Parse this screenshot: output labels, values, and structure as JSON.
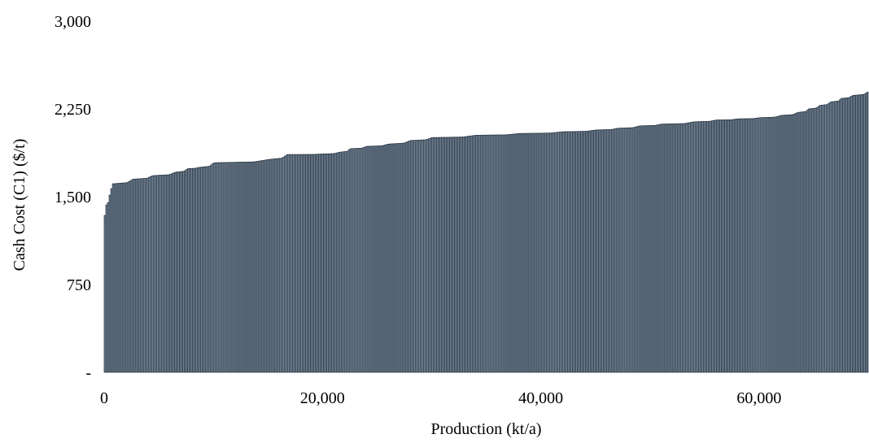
{
  "colors": {
    "bar_fill": "#7b8a9a",
    "bar_edge": "#1f2c3c",
    "text": "#000000",
    "background": "#ffffff"
  },
  "chart_data": {
    "type": "bar",
    "subtype": "cost-curve",
    "title": "",
    "xlabel": "Production (kt/a)",
    "ylabel": "Cash Cost (C1) ($/t)",
    "xlim": [
      0,
      70000
    ],
    "ylim": [
      0,
      3000
    ],
    "x_ticks": [
      0,
      20000,
      40000,
      60000
    ],
    "x_tick_labels": [
      "0",
      "20,000",
      "40,000",
      "60,000"
    ],
    "y_ticks": [
      0,
      750,
      1500,
      2250,
      3000
    ],
    "y_tick_labels": [
      "-",
      "750",
      "1,500",
      "2,250",
      "3,000"
    ],
    "grid": false,
    "legend": "none",
    "cost_curve_points": [
      {
        "x": 0,
        "y": 1340
      },
      {
        "x": 150,
        "y": 1430
      },
      {
        "x": 500,
        "y": 1560
      },
      {
        "x": 700,
        "y": 1610
      },
      {
        "x": 2600,
        "y": 1650
      },
      {
        "x": 4400,
        "y": 1680
      },
      {
        "x": 6500,
        "y": 1710
      },
      {
        "x": 7600,
        "y": 1740
      },
      {
        "x": 8600,
        "y": 1750
      },
      {
        "x": 10000,
        "y": 1790
      },
      {
        "x": 15200,
        "y": 1820
      },
      {
        "x": 16700,
        "y": 1860
      },
      {
        "x": 20000,
        "y": 1865
      },
      {
        "x": 21500,
        "y": 1880
      },
      {
        "x": 22500,
        "y": 1910
      },
      {
        "x": 24000,
        "y": 1930
      },
      {
        "x": 26000,
        "y": 1950
      },
      {
        "x": 28000,
        "y": 1980
      },
      {
        "x": 30000,
        "y": 2005
      },
      {
        "x": 34000,
        "y": 2025
      },
      {
        "x": 38000,
        "y": 2040
      },
      {
        "x": 42000,
        "y": 2055
      },
      {
        "x": 45000,
        "y": 2070
      },
      {
        "x": 47000,
        "y": 2085
      },
      {
        "x": 49000,
        "y": 2105
      },
      {
        "x": 51000,
        "y": 2120
      },
      {
        "x": 54000,
        "y": 2140
      },
      {
        "x": 56000,
        "y": 2155
      },
      {
        "x": 58000,
        "y": 2165
      },
      {
        "x": 60000,
        "y": 2175
      },
      {
        "x": 62000,
        "y": 2195
      },
      {
        "x": 63500,
        "y": 2220
      },
      {
        "x": 64500,
        "y": 2250
      },
      {
        "x": 65500,
        "y": 2280
      },
      {
        "x": 66500,
        "y": 2310
      },
      {
        "x": 67500,
        "y": 2340
      },
      {
        "x": 68500,
        "y": 2365
      },
      {
        "x": 70000,
        "y": 2400
      }
    ]
  }
}
